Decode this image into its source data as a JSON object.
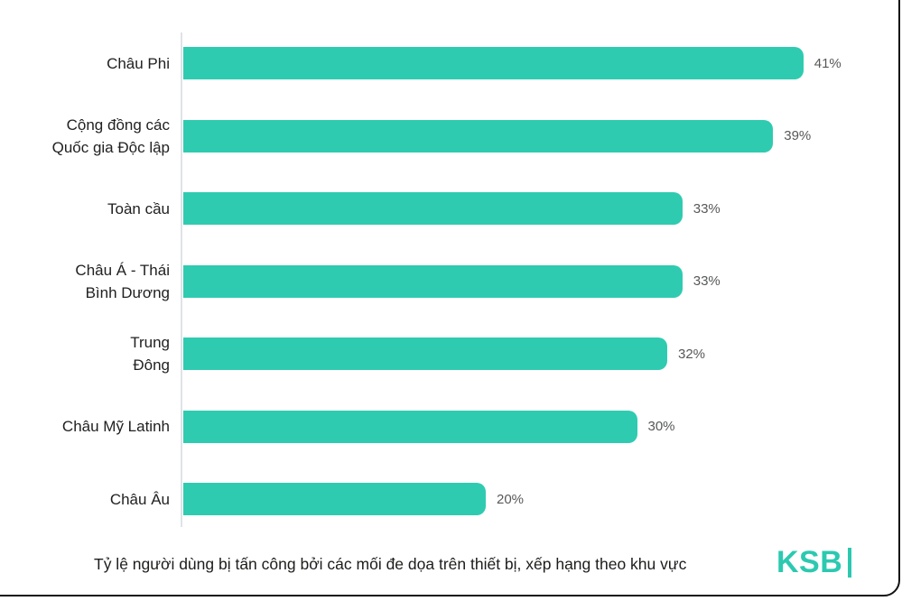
{
  "chart_data": {
    "type": "bar",
    "orientation": "horizontal",
    "title": "Tỷ lệ người dùng bị tấn công bởi các mối đe dọa trên thiết bị, xếp hạng theo khu vực",
    "categories": [
      "Châu Phi",
      "Cộng đồng các Quốc gia Độc lập",
      "Toàn cầu",
      "Châu Á - Thái Bình Dương",
      "Trung Đông",
      "Châu Mỹ Latinh",
      "Châu Âu"
    ],
    "category_display": [
      "Châu Phi",
      "Cộng đồng các\nQuốc gia Độc lập",
      "Toàn cầu",
      "Châu Á - Thái\nBình Dương",
      "Trung\nĐông",
      "Châu Mỹ Latinh",
      "Châu Âu"
    ],
    "values": [
      41,
      39,
      33,
      33,
      32,
      30,
      20
    ],
    "value_labels": [
      "41%",
      "39%",
      "33%",
      "33%",
      "32%",
      "30%",
      "20%"
    ],
    "xlabel": "",
    "ylabel": "",
    "xlim": [
      0,
      44
    ],
    "grid": false,
    "legend": false,
    "bar_color": "#2fcbb1"
  },
  "footer": {
    "caption": "Tỷ lệ người dùng bị tấn công bởi các mối đe dọa trên thiết bị, xếp hạng theo khu vực",
    "logo_text": "KSB"
  },
  "colors": {
    "bar": "#2fcbb1",
    "logo": "#2cc9b0",
    "axis": "#dfe3e6",
    "category_label": "#212121",
    "value_label": "#57585a",
    "caption": "#1d1d1b",
    "frame": "#121212"
  }
}
